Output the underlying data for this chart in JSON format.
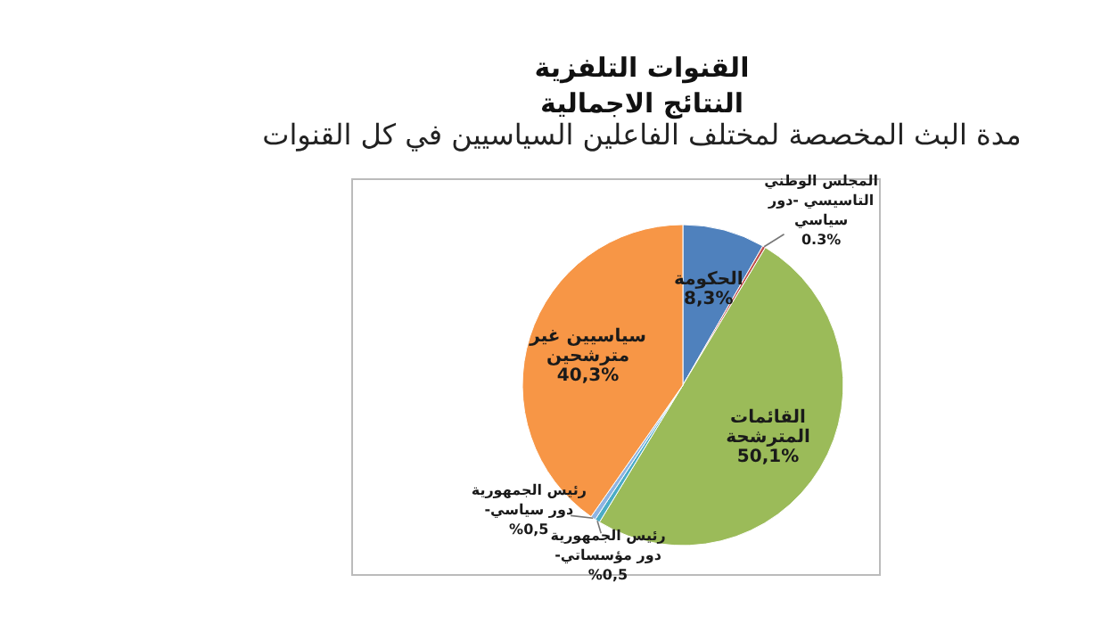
{
  "chart_data": {
    "type": "pie",
    "title": "القنوات التلفزية",
    "subtitle": "النتائج الاجمالية",
    "annotations": [
      "مدة البث المخصصة لمختلف الفاعلين السياسيين في كل القنوات"
    ],
    "categories": [
      "الحكومة",
      "المجلس الوطني التاسيسي -دور سياسي",
      "القائمات المترشحة",
      "رئيس الجمهورية -دور مؤسساتي",
      "رئيس الجمهورية -دور سياسي",
      "سياسيين غير مترشحين"
    ],
    "values": [
      8.3,
      0.3,
      50.1,
      0.5,
      0.5,
      40.3
    ],
    "value_labels": [
      "8,3%",
      "0.3%",
      "50,1%",
      "%0,5",
      "%0,5",
      "40,3%"
    ],
    "colors": [
      "#4f81bd",
      "#c0504d",
      "#9bbb59",
      "#4bacc6",
      "#8eb4e3",
      "#f79646"
    ],
    "legend": false
  }
}
